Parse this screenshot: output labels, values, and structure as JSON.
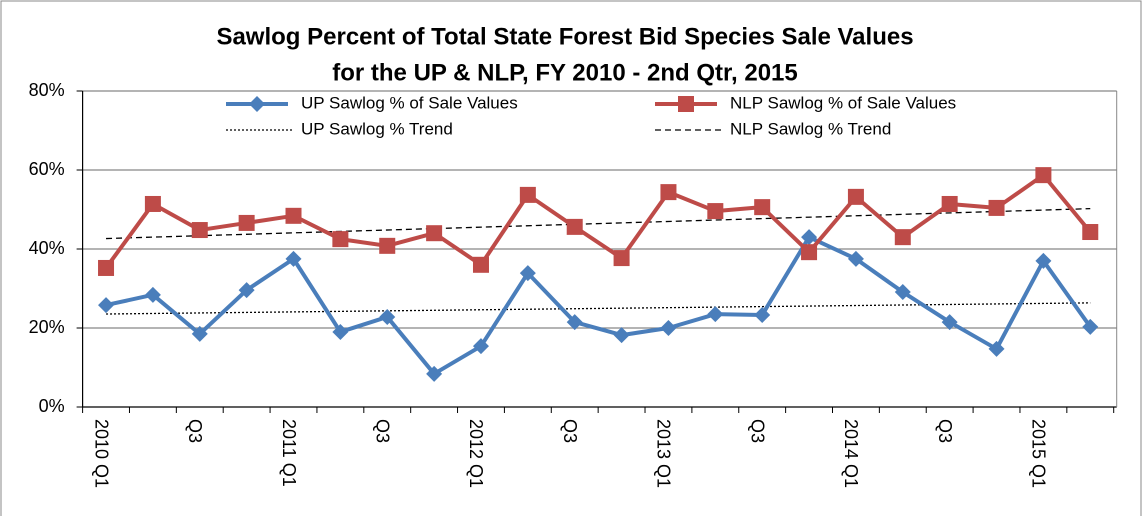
{
  "chart_data": {
    "type": "line",
    "title": [
      "Sawlog Percent of Total State Forest  Bid Species Sale Values",
      "for the UP & NLP, FY 2010 -  2nd Qtr, 2015"
    ],
    "categories": [
      "2010 Q1",
      null,
      "Q3",
      null,
      "2011 Q1",
      null,
      "Q3",
      null,
      "2012 Q1",
      null,
      "Q3",
      null,
      "2013 Q1",
      null,
      "Q3",
      null,
      "2014 Q1",
      null,
      "Q3",
      null,
      "2015 Q1",
      null
    ],
    "series": [
      {
        "name": "UP Sawlog % of Sale Values",
        "color": "#4a7ebb",
        "marker": "diamond",
        "values": [
          25.8,
          28.4,
          18.5,
          29.6,
          37.5,
          19,
          22.8,
          8.4,
          15.4,
          33.9,
          21.5,
          18.2,
          20,
          23.5,
          23.3,
          43,
          37.5,
          29.1,
          21.5,
          14.7,
          37,
          20.3
        ],
        "trendline": {
          "name": "UP Sawlog % Trend",
          "color": "#000000",
          "dash": "dotted"
        }
      },
      {
        "name": "NLP Sawlog % of Sale Values",
        "color": "#be4b48",
        "marker": "square",
        "values": [
          35.2,
          51.4,
          44.8,
          46.6,
          48.4,
          42.5,
          40.8,
          44,
          36,
          53.7,
          45.6,
          37.7,
          54.4,
          49.6,
          50.6,
          39.2,
          53.2,
          43,
          51.4,
          50.4,
          58.7,
          44.3
        ],
        "trendline": {
          "name": "NLP Sawlog % Trend",
          "color": "#000000",
          "dash": "dashed"
        }
      }
    ],
    "ylim": [
      0,
      80
    ],
    "yticks": [
      {
        "value": 0,
        "label": "0%"
      },
      {
        "value": 20,
        "label": "20%"
      },
      {
        "value": 40,
        "label": "40%"
      },
      {
        "value": 60,
        "label": "60%"
      },
      {
        "value": 80,
        "label": "80%"
      }
    ],
    "grid": true,
    "legend": "top"
  }
}
